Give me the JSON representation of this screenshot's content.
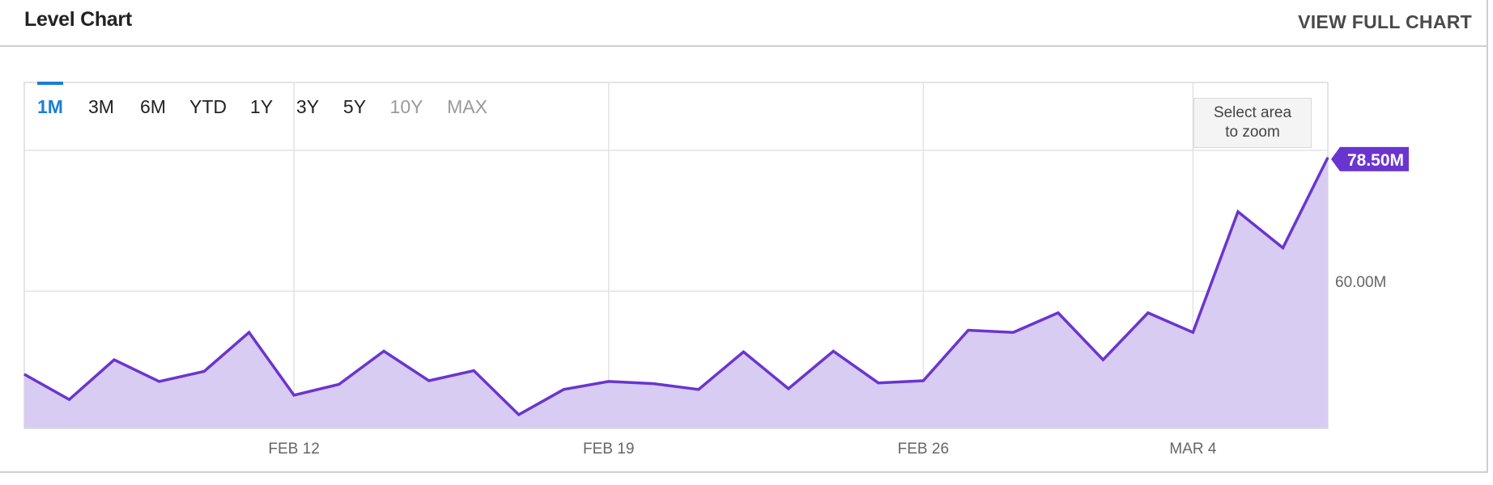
{
  "header": {
    "title": "Level Chart",
    "view_full_label": "VIEW FULL CHART"
  },
  "range_buttons": [
    {
      "label": "1M",
      "state": "active"
    },
    {
      "label": "3M",
      "state": "normal"
    },
    {
      "label": "6M",
      "state": "normal"
    },
    {
      "label": "YTD",
      "state": "normal"
    },
    {
      "label": "1Y",
      "state": "normal"
    },
    {
      "label": "3Y",
      "state": "normal"
    },
    {
      "label": "5Y",
      "state": "normal"
    },
    {
      "label": "10Y",
      "state": "disabled"
    },
    {
      "label": "MAX",
      "state": "disabled"
    }
  ],
  "zoom_hint": {
    "line1": "Select area",
    "line2": "to zoom"
  },
  "colors": {
    "line": "#6a35cf",
    "fill": "#d8ccf2",
    "active_button": "#1a7fd4",
    "badge": "#6a35cf",
    "grid": "#e3e3e3"
  },
  "chart_data": {
    "type": "area",
    "x_tick_labels": [
      "FEB 12",
      "FEB 19",
      "FEB 26",
      "MAR 4"
    ],
    "x_tick_dates": [
      "2019-02-12",
      "2019-02-19",
      "2019-02-26",
      "2019-03-04"
    ],
    "y_tick_labels": [
      "60.00M"
    ],
    "y_ticks": [
      60
    ],
    "ylim": [
      41,
      79.5
    ],
    "xlim": [
      "2019-02-06",
      "2019-03-07"
    ],
    "grid": true,
    "last_value_label": "78.50M",
    "series": [
      {
        "x": [
          "2019-02-06",
          "2019-02-07",
          "2019-02-08",
          "2019-02-09",
          "2019-02-10",
          "2019-02-11",
          "2019-02-12",
          "2019-02-13",
          "2019-02-14",
          "2019-02-15",
          "2019-02-16",
          "2019-02-17",
          "2019-02-18",
          "2019-02-19",
          "2019-02-20",
          "2019-02-21",
          "2019-02-22",
          "2019-02-23",
          "2019-02-24",
          "2019-02-25",
          "2019-02-26",
          "2019-02-27",
          "2019-02-28",
          "2019-03-01",
          "2019-03-02",
          "2019-03-03",
          "2019-03-04",
          "2019-03-05",
          "2019-03-06",
          "2019-03-07"
        ],
        "values": [
          48.5,
          45.0,
          50.5,
          47.5,
          48.9,
          54.3,
          45.6,
          47.1,
          51.7,
          47.6,
          49.0,
          42.9,
          46.4,
          47.5,
          47.2,
          46.4,
          51.6,
          46.5,
          51.7,
          47.3,
          47.6,
          54.6,
          54.3,
          57.0,
          50.5,
          57.0,
          54.3,
          71.0,
          66.0,
          78.5
        ]
      }
    ]
  }
}
